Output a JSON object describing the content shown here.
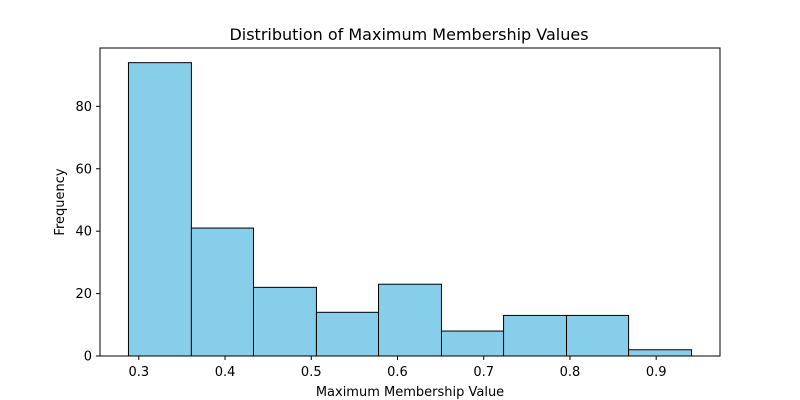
{
  "chart_data": {
    "type": "bar",
    "title": "Distribution of Maximum Membership Values",
    "xlabel": "Maximum Membership Value",
    "ylabel": "Frequency",
    "bins": [
      {
        "start": 0.288,
        "end": 0.361,
        "count": 94
      },
      {
        "start": 0.361,
        "end": 0.433,
        "count": 41
      },
      {
        "start": 0.433,
        "end": 0.506,
        "count": 22
      },
      {
        "start": 0.506,
        "end": 0.578,
        "count": 14
      },
      {
        "start": 0.578,
        "end": 0.651,
        "count": 23
      },
      {
        "start": 0.651,
        "end": 0.723,
        "count": 8
      },
      {
        "start": 0.723,
        "end": 0.796,
        "count": 13
      },
      {
        "start": 0.796,
        "end": 0.868,
        "count": 13
      },
      {
        "start": 0.868,
        "end": 0.941,
        "count": 2
      }
    ],
    "xlim": [
      0.255,
      0.974
    ],
    "ylim": [
      0,
      98.7
    ],
    "xticks": [
      0.3,
      0.4,
      0.5,
      0.6,
      0.7,
      0.8,
      0.9
    ],
    "xtick_labels": [
      "0.3",
      "0.4",
      "0.5",
      "0.6",
      "0.7",
      "0.8",
      "0.9"
    ],
    "yticks": [
      0,
      20,
      40,
      60,
      80
    ],
    "ytick_labels": [
      "0",
      "20",
      "40",
      "60",
      "80"
    ],
    "grid": false,
    "colors": {
      "bar_fill": "#87ceeb",
      "bar_edge": "#000000",
      "axis": "#000000"
    }
  }
}
